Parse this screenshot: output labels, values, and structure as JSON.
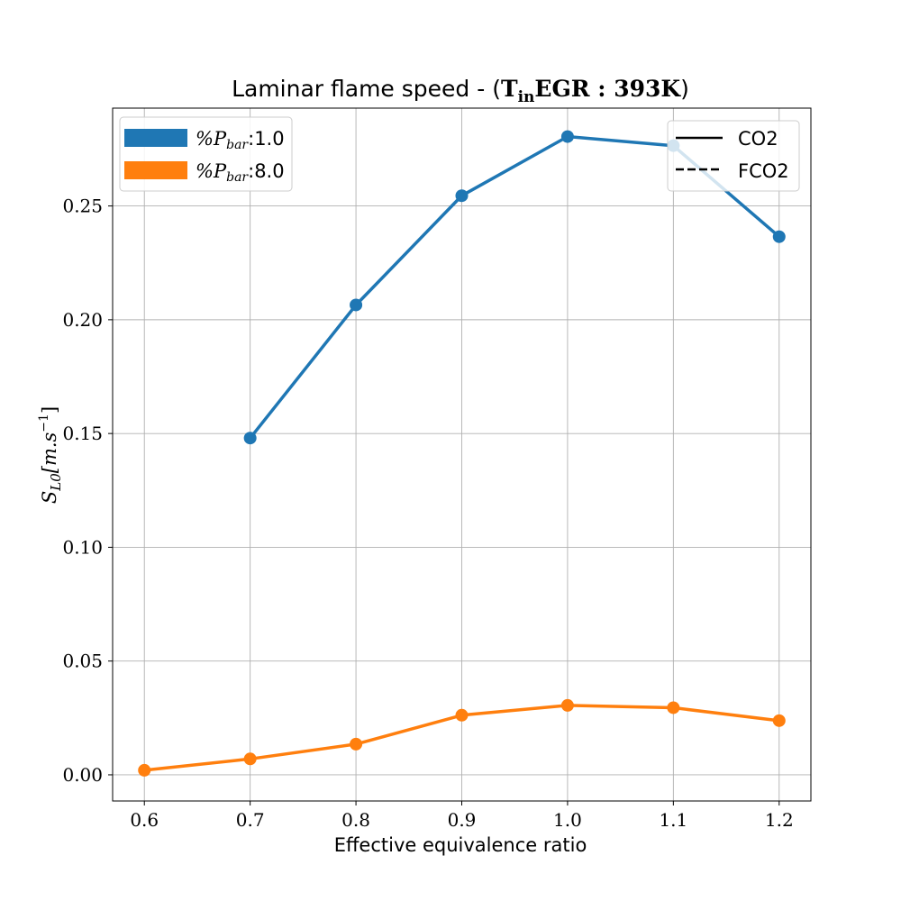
{
  "chart_data": {
    "type": "line",
    "title": "Laminar flame speed - (T_in EGR : 393K)",
    "title_parts": {
      "prefix": "Laminar flame speed - (",
      "T": "T",
      "sub": "in",
      "rest": "EGR : 393K",
      "suffix": ")"
    },
    "xlabel": "Effective equivalence ratio",
    "ylabel": "S_L0[m.s^-1]",
    "ylabel_parts": {
      "S": "S",
      "sub": "L0",
      "bracket": "[m.s",
      "sup": "−1",
      "close": "]"
    },
    "xlim": [
      0.57,
      1.23
    ],
    "ylim": [
      -0.0115,
      0.293
    ],
    "x_ticks": [
      "0.6",
      "0.7",
      "0.8",
      "0.9",
      "1.0",
      "1.1",
      "1.2"
    ],
    "y_ticks": [
      "0.00",
      "0.05",
      "0.10",
      "0.15",
      "0.20",
      "0.25"
    ],
    "grid": true,
    "series": [
      {
        "name": "%P_bar:1.0",
        "color": "#1f77b4",
        "x": [
          0.7,
          0.8,
          0.9,
          1.0,
          1.1,
          1.2
        ],
        "y": [
          0.148,
          0.2065,
          0.2545,
          0.2805,
          0.2765,
          0.2365
        ]
      },
      {
        "name": "%P_bar:8.0",
        "color": "#ff7f0e",
        "x": [
          0.6,
          0.7,
          0.8,
          0.9,
          1.0,
          1.1,
          1.2
        ],
        "y": [
          0.002,
          0.007,
          0.0135,
          0.0262,
          0.0305,
          0.0295,
          0.0238
        ]
      }
    ],
    "legend_colors": {
      "placement": "top-left",
      "entries": [
        {
          "prefix": "%",
          "P": "P",
          "sub": "bar",
          "value": ":1.0",
          "color": "#1f77b4"
        },
        {
          "prefix": "%",
          "P": "P",
          "sub": "bar",
          "value": ":8.0",
          "color": "#ff7f0e"
        }
      ]
    },
    "legend_styles": {
      "placement": "top-right",
      "entries": [
        {
          "label": "CO2",
          "style": "solid"
        },
        {
          "label": "FCO2",
          "style": "dashed"
        }
      ]
    }
  }
}
